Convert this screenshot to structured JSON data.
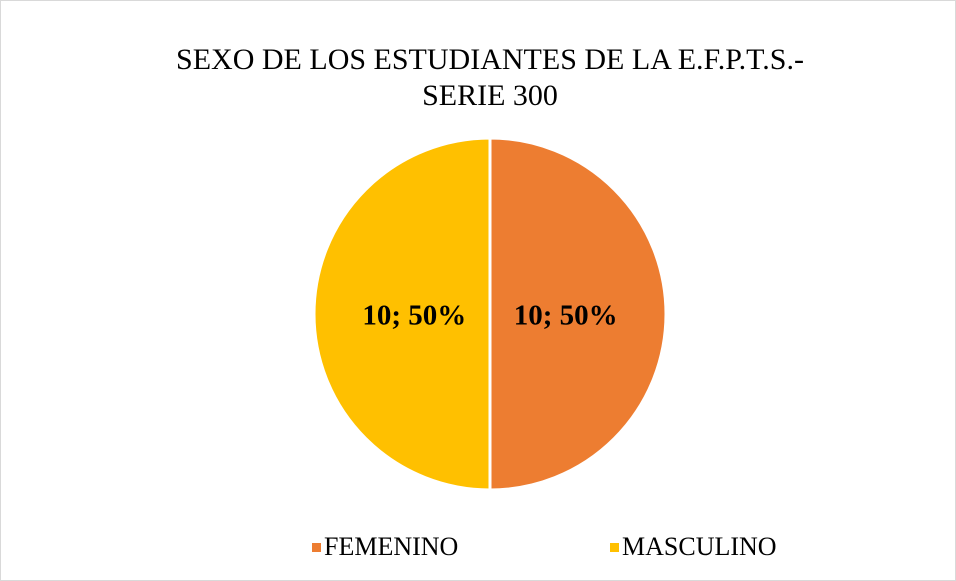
{
  "chart_data": {
    "type": "pie",
    "title": [
      "SEXO DE LOS ESTUDIANTES DE LA E.F.P.T.S.-",
      "SERIE 300"
    ],
    "categories": [
      "FEMENINO",
      "MASCULINO"
    ],
    "values": [
      10,
      10
    ],
    "value_labels": [
      "10; 50%",
      "10; 50%"
    ],
    "colors": [
      "#ED7D31",
      "#FFC000"
    ],
    "legend": "bottom"
  }
}
